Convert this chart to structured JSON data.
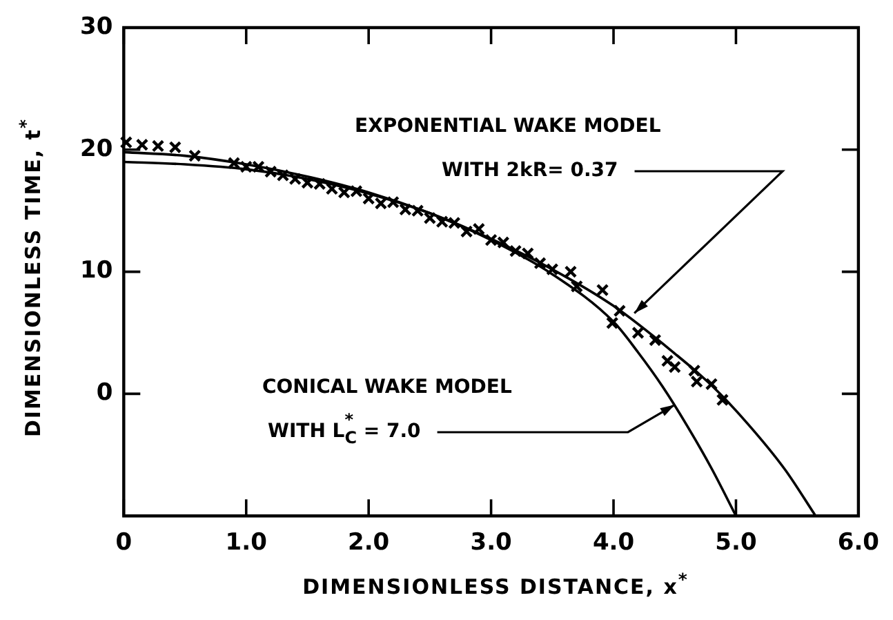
{
  "chart_data": {
    "type": "line",
    "xlabel": "DIMENSIONLESS DISTANCE, x$^{*}$",
    "ylabel": "DIMENSIONLESS TIME, t$^{*}$",
    "xlim": [
      0,
      6
    ],
    "ylim": [
      -10,
      30
    ],
    "xticks": [
      0,
      {
        "value": 1,
        "label": "1.0"
      },
      {
        "value": 2,
        "label": "2.0"
      },
      {
        "value": 3,
        "label": "3.0"
      },
      {
        "value": 4,
        "label": "4.0"
      },
      {
        "value": 5,
        "label": "5.0"
      },
      {
        "value": 6,
        "label": "6.0"
      }
    ],
    "yticks": [
      {
        "value": -10,
        "label": null
      },
      0,
      10,
      20,
      30
    ],
    "grid": false,
    "series": [
      {
        "type": "line",
        "color": "#000000",
        "marker": "none",
        "x": [
          0,
          0.5,
          1,
          1.5,
          2,
          2.5,
          3,
          3.5,
          4,
          4.5,
          4.8,
          5.1,
          5.4,
          5.65
        ],
        "values": [
          19.8,
          19.5,
          18.8,
          17.8,
          16.5,
          14.8,
          12.7,
          10.2,
          7.2,
          3.3,
          0.7,
          -2.5,
          -6.2,
          -10
        ]
      },
      {
        "type": "line",
        "color": "#000000",
        "marker": "none",
        "x": [
          0,
          0.5,
          1,
          1.5,
          2,
          2.5,
          3,
          3.5,
          4,
          4.2,
          4.4,
          4.6,
          4.8,
          5
        ],
        "values": [
          19,
          18.8,
          18.4,
          17.6,
          16.4,
          14.8,
          12.6,
          9.8,
          5.9,
          3.4,
          0.6,
          -2.6,
          -6.1,
          -10
        ]
      },
      {
        "type": "scatter",
        "color": "#000000",
        "marker": "cross",
        "x": [
          0.02,
          0.15,
          0.28,
          0.42,
          0.58,
          0.9,
          1,
          1.1,
          1.2,
          1.3,
          1.4,
          1.5,
          1.6,
          1.7,
          1.8,
          1.9,
          2,
          2.1,
          2.2,
          2.3,
          2.4,
          2.5,
          2.6,
          2.7,
          2.8,
          2.9,
          3,
          3.1,
          3.2,
          3.3,
          3.4,
          3.5,
          3.65,
          3.7,
          3.91,
          3.99,
          4.05,
          4.2,
          4.34,
          4.44,
          4.5,
          4.66,
          4.68,
          4.8,
          4.89
        ],
        "values": [
          20.6,
          20.4,
          20.3,
          20.2,
          19.5,
          18.9,
          18.6,
          18.6,
          18.2,
          17.9,
          17.6,
          17.3,
          17.2,
          16.8,
          16.5,
          16.6,
          16,
          15.6,
          15.7,
          15.1,
          15,
          14.4,
          14.1,
          14,
          13.3,
          13.5,
          12.6,
          12.4,
          11.7,
          11.5,
          10.7,
          10.2,
          10,
          8.8,
          8.5,
          5.8,
          6.8,
          5,
          4.4,
          2.7,
          2.2,
          1.9,
          1,
          0.8,
          -0.5
        ]
      }
    ],
    "annotations": [
      {
        "text": "EXPONENTIAL WAKE MODEL\nWITH 2kR= 0.37",
        "x": 4.17,
        "y": 6.6
      },
      {
        "text": "CONICAL WAKE MODEL\nWITH L$^{*}$$_{C}$ = 7.0",
        "x": 4.5,
        "y": -0.9
      }
    ]
  }
}
